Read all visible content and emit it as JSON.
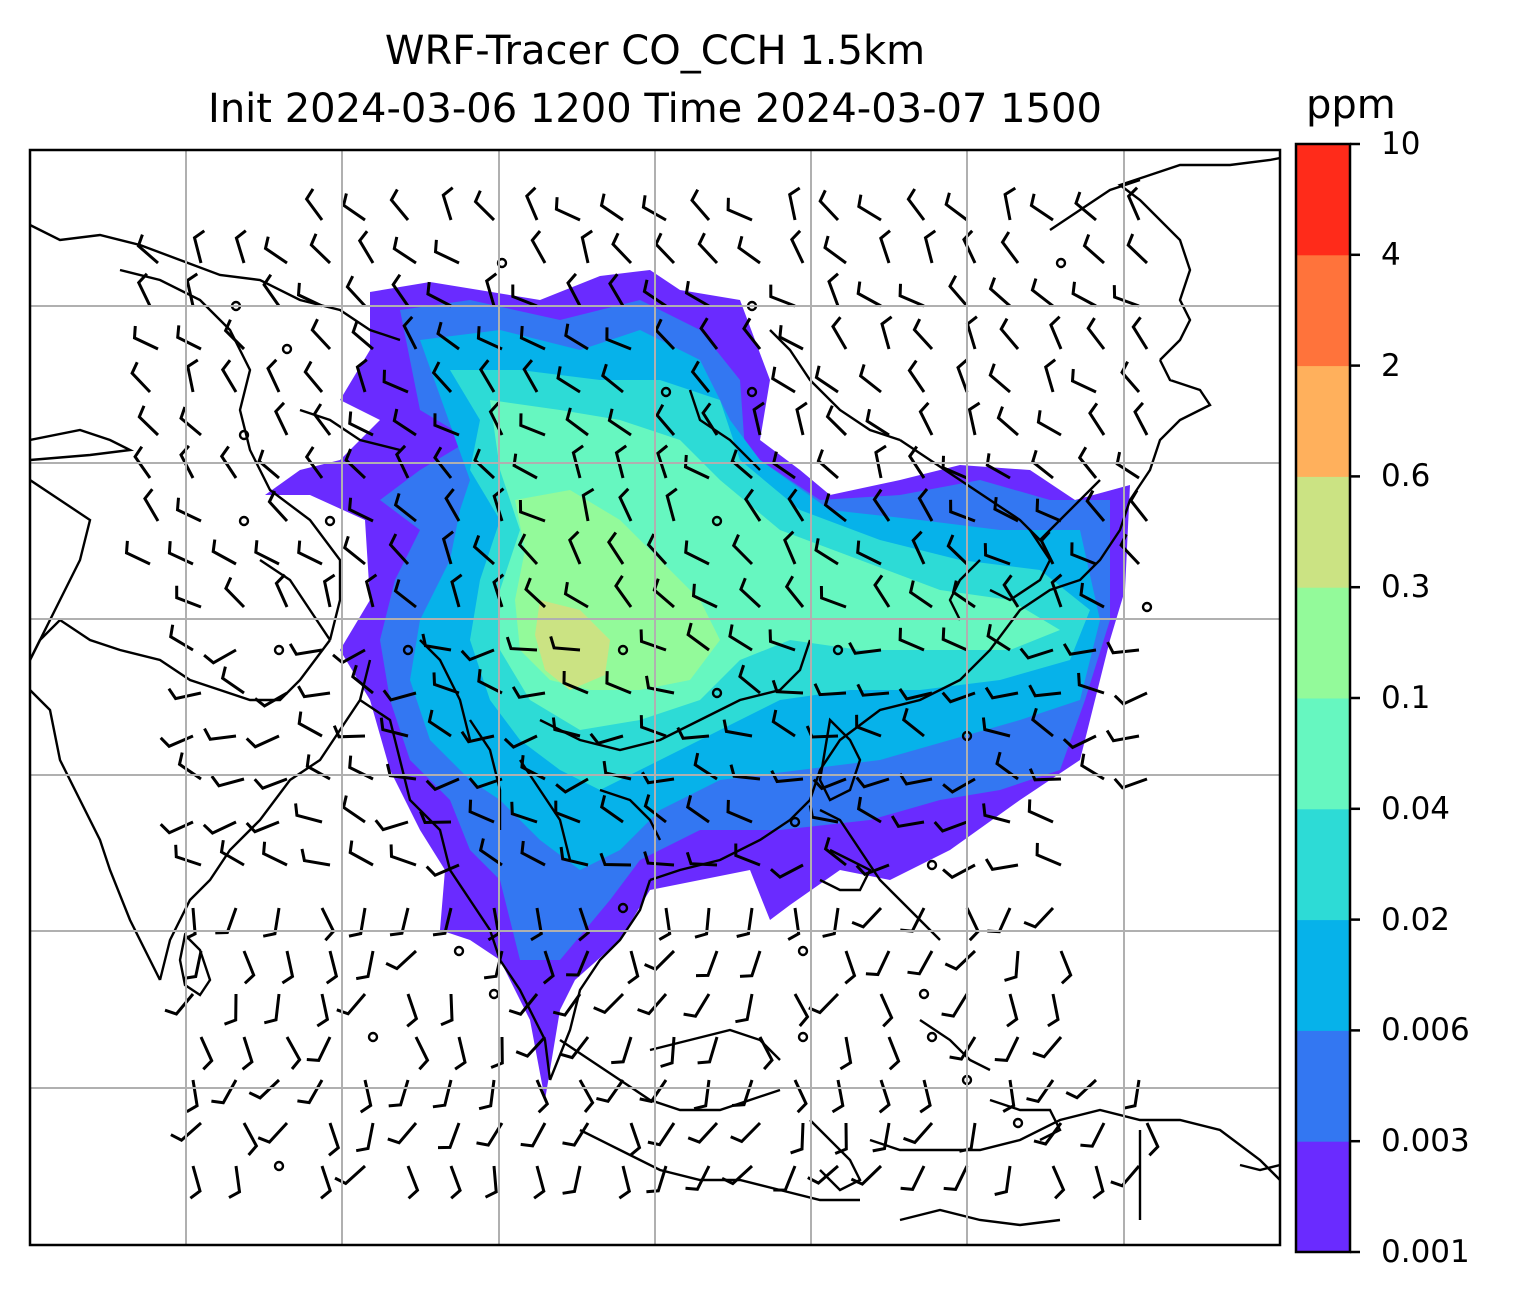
{
  "title": {
    "line1": "WRF-Tracer CO_CCH 1.5km",
    "line2": "Init 2024-03-06 1200 Time 2024-03-07 1500"
  },
  "colorbar": {
    "unit": "ppm",
    "levels": [
      "0.001",
      "0.003",
      "0.006",
      "0.02",
      "0.04",
      "0.1",
      "0.3",
      "0.6",
      "2",
      "4",
      "10"
    ],
    "colors": [
      "#6a2bff",
      "#3377f2",
      "#06b2ea",
      "#2ddbd6",
      "#66f7c0",
      "#93fa9a",
      "#cbe383",
      "#ffb05c",
      "#ff733b",
      "#ff2b1a"
    ]
  },
  "map": {
    "gridlines": "on",
    "overlay": "wind barbs",
    "coastline_color": "#000000",
    "grid_color": "#b0b0b0"
  }
}
